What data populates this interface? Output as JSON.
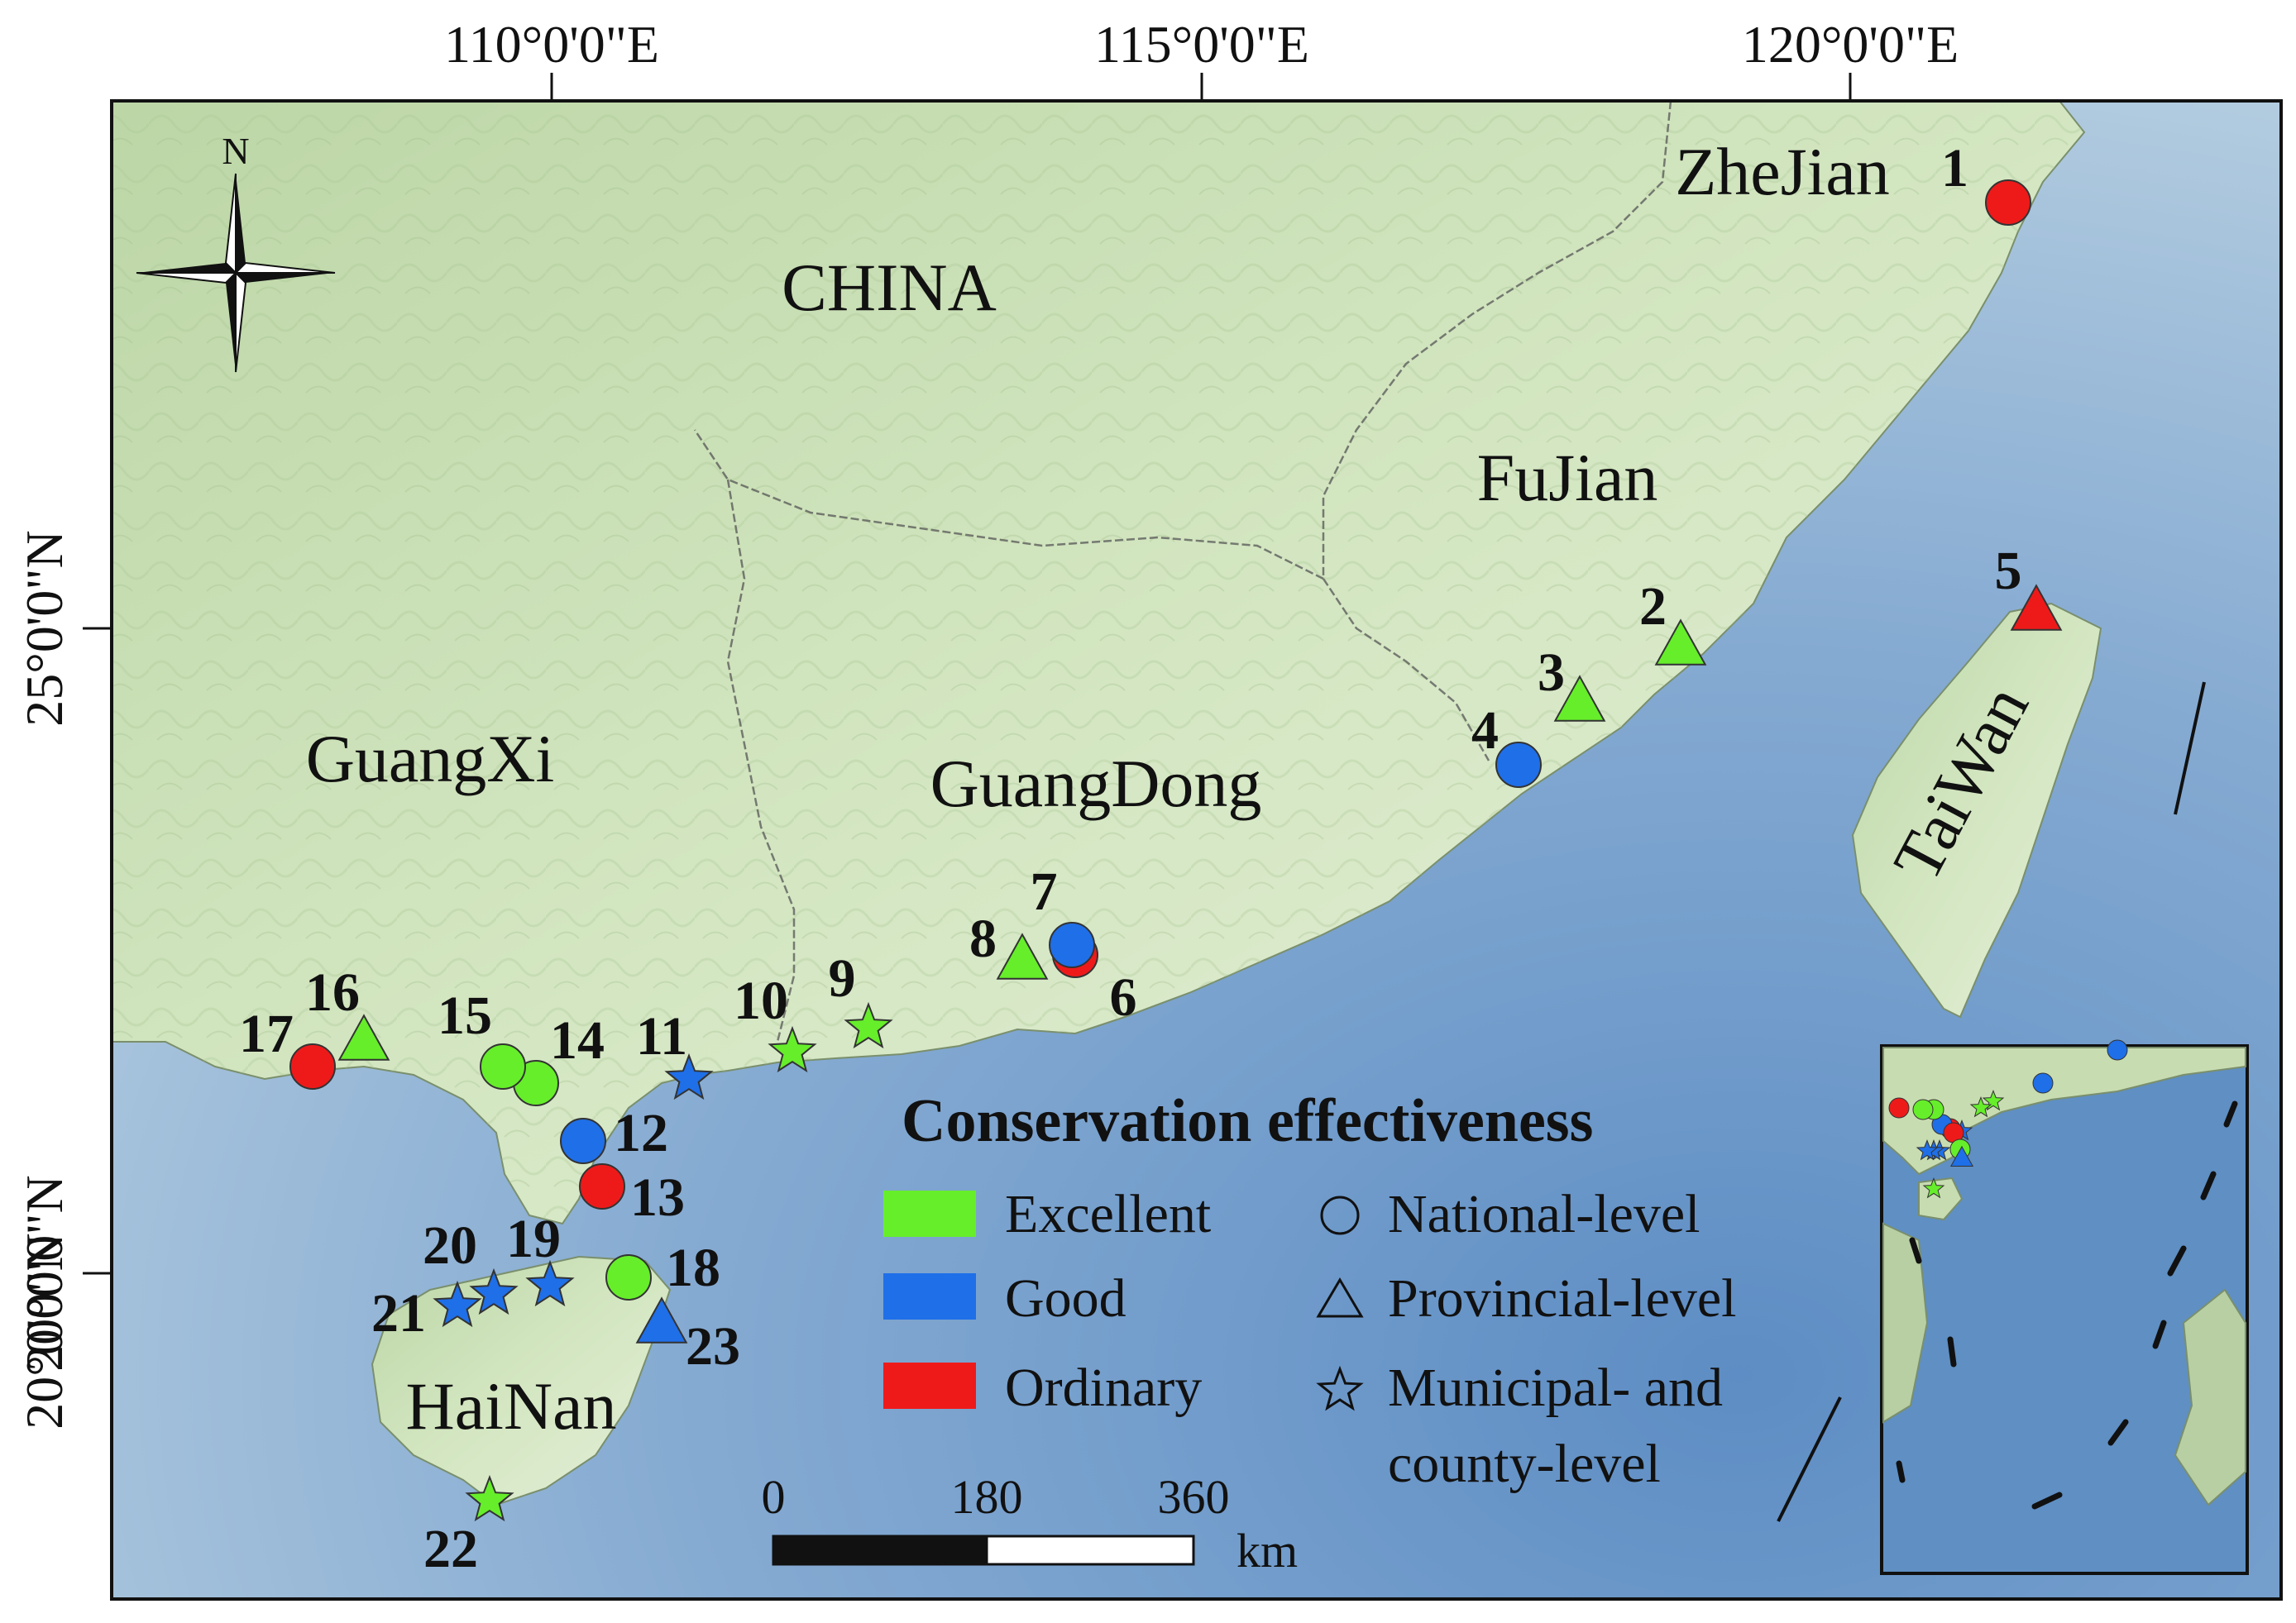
{
  "lon_labels": [
    "110°0'0\"E",
    "115°0'0\"E",
    "120°0'0\"E"
  ],
  "lat_labels": [
    "25°0'0\"N",
    "20°0'0\"N",
    "20°0'0\"N"
  ],
  "compass_label": "N",
  "regions": {
    "china": "CHINA",
    "zhejiang": "ZheJian",
    "fujian": "FuJian",
    "guangxi": "GuangXi",
    "guangdong": "GuangDong",
    "taiwan": "TaiWan",
    "hainan": "HaiNan"
  },
  "colors": {
    "excellent": "#66ee2a",
    "good": "#1f6fe8",
    "ordinary": "#ee1a1a",
    "land": "#cfe3bd",
    "sea": "#9fbfd8",
    "deep_sea": "#6f9ccc"
  },
  "sites": [
    {
      "id": "1",
      "level": "national",
      "effectiveness": "ordinary"
    },
    {
      "id": "2",
      "level": "provincial",
      "effectiveness": "excellent"
    },
    {
      "id": "3",
      "level": "provincial",
      "effectiveness": "excellent"
    },
    {
      "id": "4",
      "level": "national",
      "effectiveness": "good"
    },
    {
      "id": "5",
      "level": "provincial",
      "effectiveness": "ordinary"
    },
    {
      "id": "6",
      "level": "national",
      "effectiveness": "ordinary"
    },
    {
      "id": "7",
      "level": "national",
      "effectiveness": "good"
    },
    {
      "id": "8",
      "level": "provincial",
      "effectiveness": "excellent"
    },
    {
      "id": "9",
      "level": "municipal",
      "effectiveness": "excellent"
    },
    {
      "id": "10",
      "level": "municipal",
      "effectiveness": "excellent"
    },
    {
      "id": "11",
      "level": "municipal",
      "effectiveness": "good"
    },
    {
      "id": "12",
      "level": "national",
      "effectiveness": "good"
    },
    {
      "id": "13",
      "level": "national",
      "effectiveness": "ordinary"
    },
    {
      "id": "14",
      "level": "national",
      "effectiveness": "excellent"
    },
    {
      "id": "15",
      "level": "national",
      "effectiveness": "excellent"
    },
    {
      "id": "16",
      "level": "provincial",
      "effectiveness": "excellent"
    },
    {
      "id": "17",
      "level": "national",
      "effectiveness": "ordinary"
    },
    {
      "id": "18",
      "level": "national",
      "effectiveness": "excellent"
    },
    {
      "id": "19",
      "level": "municipal",
      "effectiveness": "good"
    },
    {
      "id": "20",
      "level": "municipal",
      "effectiveness": "good"
    },
    {
      "id": "21",
      "level": "municipal",
      "effectiveness": "good"
    },
    {
      "id": "22",
      "level": "municipal",
      "effectiveness": "excellent"
    },
    {
      "id": "23",
      "level": "provincial",
      "effectiveness": "good"
    }
  ],
  "legend": {
    "title": "Conservation effectiveness",
    "excellent": "Excellent",
    "good": "Good",
    "ordinary": "Ordinary",
    "national": "National-level",
    "provincial": "Provincial-level",
    "municipal_line1": "Municipal- and",
    "municipal_line2": "county-level"
  },
  "scale_bar": {
    "tick0": "0",
    "tick1": "180",
    "tick2": "360",
    "unit": "km"
  }
}
